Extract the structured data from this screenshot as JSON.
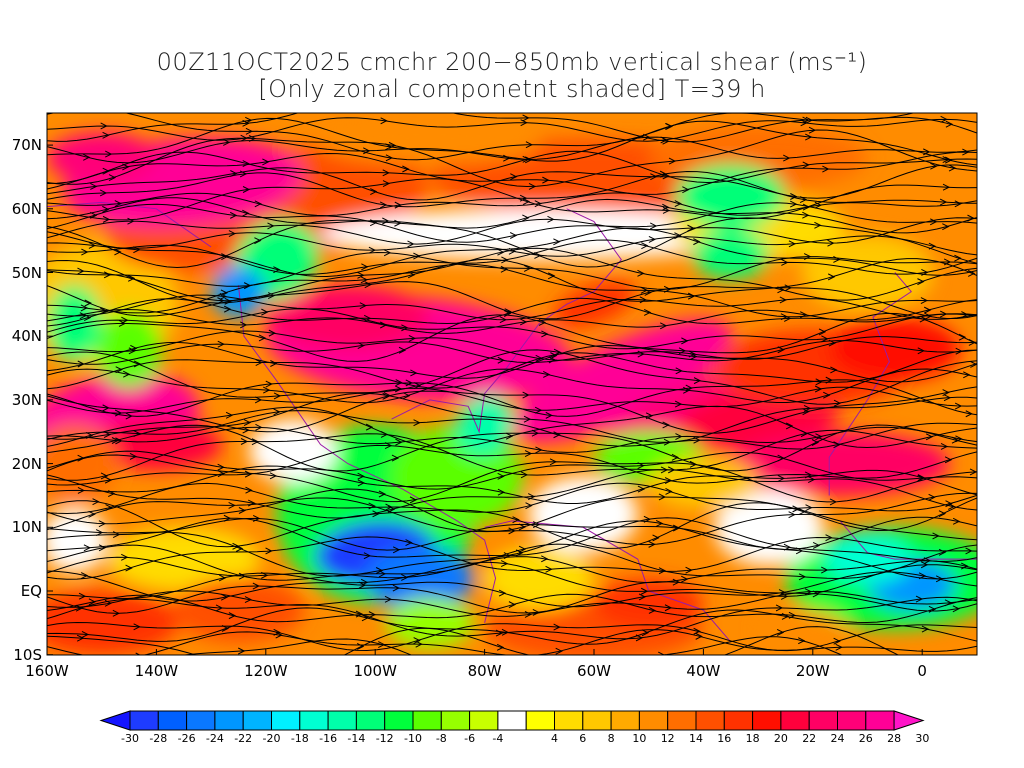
{
  "title": {
    "line1": "00Z11OCT2025 cmchr 200−850mb vertical shear (ms⁻¹)",
    "line2": "[Only zonal componetnt shaded] T=39 h"
  },
  "map": {
    "lon_range": [
      -160,
      10
    ],
    "lat_range": [
      -10,
      75
    ],
    "lat_labels": [
      {
        "lat": 70,
        "label": "70N"
      },
      {
        "lat": 60,
        "label": "60N"
      },
      {
        "lat": 50,
        "label": "50N"
      },
      {
        "lat": 40,
        "label": "40N"
      },
      {
        "lat": 30,
        "label": "30N"
      },
      {
        "lat": 20,
        "label": "20N"
      },
      {
        "lat": 10,
        "label": "10N"
      },
      {
        "lat": 0,
        "label": "EQ"
      },
      {
        "lat": -10,
        "label": "10S"
      }
    ],
    "lon_labels": [
      {
        "lon": -160,
        "label": "160W"
      },
      {
        "lon": -140,
        "label": "140W"
      },
      {
        "lon": -120,
        "label": "120W"
      },
      {
        "lon": -100,
        "label": "100W"
      },
      {
        "lon": -80,
        "label": "80W"
      },
      {
        "lon": -60,
        "label": "60W"
      },
      {
        "lon": -40,
        "label": "40W"
      },
      {
        "lon": -20,
        "label": "20W"
      },
      {
        "lon": 0,
        "label": "0"
      }
    ]
  },
  "colorbar": {
    "labels": [
      "-30",
      "-28",
      "-26",
      "-24",
      "-22",
      "-20",
      "-18",
      "-16",
      "-14",
      "-12",
      "-10",
      "-8",
      "-6",
      "-4",
      "4",
      "6",
      "8",
      "10",
      "12",
      "14",
      "16",
      "18",
      "20",
      "22",
      "24",
      "26",
      "28",
      "30"
    ],
    "low_arrow_color": "#1414ff",
    "high_arrow_color": "#ff14c8",
    "colors": [
      "#1e3cff",
      "#0060ff",
      "#0a78ff",
      "#0096ff",
      "#00b4ff",
      "#00f0ff",
      "#00ffd2",
      "#00ffaa",
      "#00ff78",
      "#00ff3c",
      "#5aff00",
      "#96ff00",
      "#c8ff00",
      "#ffffff",
      "#ffff00",
      "#ffdc00",
      "#ffc800",
      "#ffaa00",
      "#ff8c00",
      "#ff6e00",
      "#ff5000",
      "#ff3200",
      "#ff0f00",
      "#ff003c",
      "#ff0064",
      "#ff0078",
      "#ff0096"
    ]
  }
}
